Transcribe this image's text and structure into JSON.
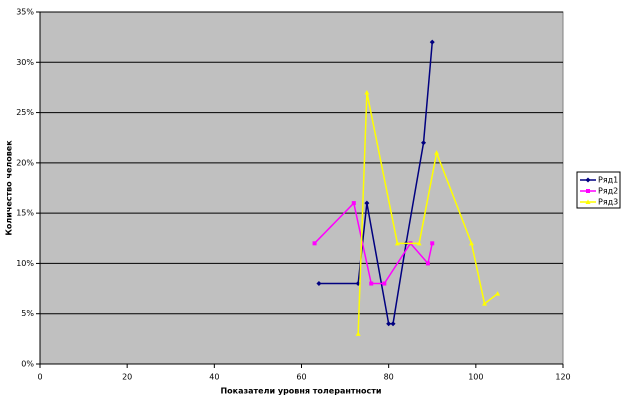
{
  "chart_data": {
    "type": "scatter-line",
    "xlabel": "Показатели уровня толерантности",
    "ylabel": "Количество человек",
    "xlim": [
      0,
      120
    ],
    "xticks": [
      0,
      20,
      40,
      60,
      80,
      100,
      120
    ],
    "ylim": [
      0,
      35
    ],
    "yticks": [
      {
        "value": 0,
        "label": "0%"
      },
      {
        "value": 5,
        "label": "5%"
      },
      {
        "value": 10,
        "label": "10%"
      },
      {
        "value": 15,
        "label": "15%"
      },
      {
        "value": 20,
        "label": "20%"
      },
      {
        "value": 25,
        "label": "25%"
      },
      {
        "value": 30,
        "label": "30%"
      },
      {
        "value": 35,
        "label": "35%"
      }
    ],
    "grid": true,
    "legend": "right",
    "series": [
      {
        "name": "Ряд1",
        "color": "#000080",
        "x": [
          64,
          73,
          75,
          80,
          81,
          84,
          88,
          90
        ],
        "values": [
          8,
          8,
          16,
          4,
          4,
          12,
          22,
          32
        ]
      },
      {
        "name": "Ряд2",
        "color": "#ff00ff",
        "x": [
          63,
          72,
          76,
          79,
          85,
          89,
          90
        ],
        "values": [
          12,
          16,
          8,
          8,
          12,
          10,
          12
        ]
      },
      {
        "name": "Ряд3",
        "color": "#ffff00",
        "x": [
          73,
          75,
          82,
          87,
          91,
          99,
          102,
          105
        ],
        "values": [
          3,
          27,
          12,
          12,
          21,
          12,
          6,
          7
        ]
      }
    ]
  }
}
